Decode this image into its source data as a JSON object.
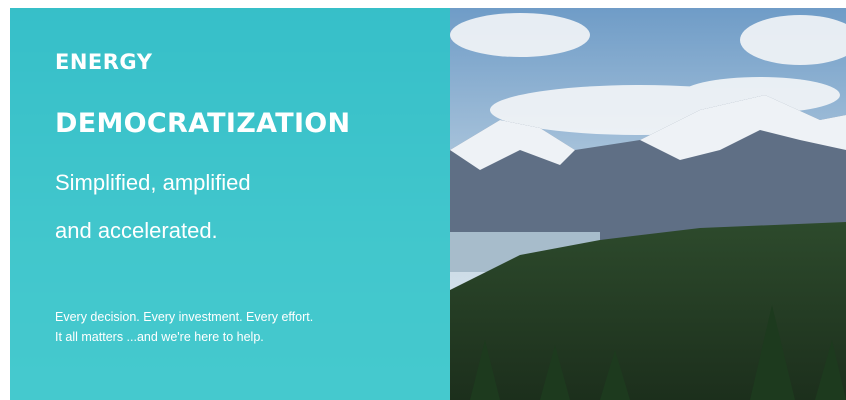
{
  "hero": {
    "title_line1": "ENERGY",
    "title_line2": "DEMOCRATIZATION",
    "subtitle_lines": [
      "Simplified, amplified",
      "and accelerated."
    ],
    "body_lines": [
      "Every decision. Every investment. Every effort.",
      "It all matters ...and we're here to help."
    ]
  }
}
